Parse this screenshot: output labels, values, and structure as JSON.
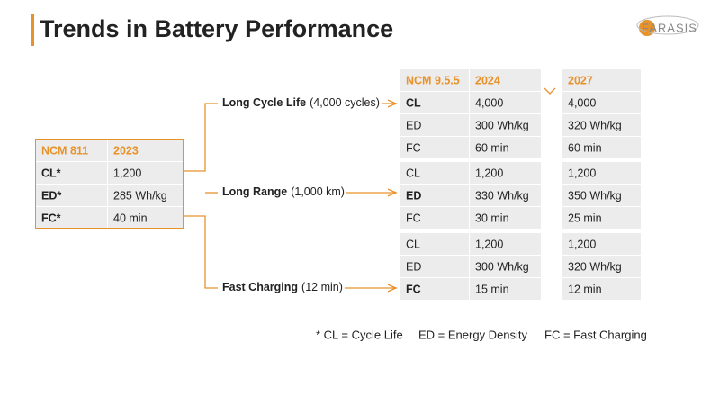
{
  "header": {
    "title": "Trends in Battery Performance",
    "logo": "FARASIS"
  },
  "base_table": {
    "columns": [
      "NCM 811",
      "2023"
    ],
    "rows": [
      [
        "CL*",
        "1,200"
      ],
      [
        "ED*",
        "285 Wh/kg"
      ],
      [
        "FC*",
        "40 min"
      ]
    ]
  },
  "branches": [
    {
      "label": "Long Cycle Life",
      "detail": "(4,000 cycles)"
    },
    {
      "label": "Long Range",
      "detail": "(1,000 km)"
    },
    {
      "label": "Fast Charging",
      "detail": "(12 min)"
    }
  ],
  "target_table": {
    "columns": [
      "NCM 9.5.5",
      "2024",
      "2027"
    ],
    "groups": [
      {
        "bold_row": 0,
        "rows": [
          [
            "CL",
            "4,000",
            "4,000"
          ],
          [
            "ED",
            "300 Wh/kg",
            "320 Wh/kg"
          ],
          [
            "FC",
            "60 min",
            "60 min"
          ]
        ]
      },
      {
        "bold_row": 1,
        "rows": [
          [
            "CL",
            "1,200",
            "1,200"
          ],
          [
            "ED",
            "330 Wh/kg",
            "350 Wh/kg"
          ],
          [
            "FC",
            "30 min",
            "25 min"
          ]
        ]
      },
      {
        "bold_row": 2,
        "rows": [
          [
            "CL",
            "1,200",
            "1,200"
          ],
          [
            "ED",
            "300 Wh/kg",
            "320 Wh/kg"
          ],
          [
            "FC",
            "15 min",
            "12 min"
          ]
        ]
      }
    ]
  },
  "footnote": [
    "* CL = Cycle Life",
    "ED = Energy Density",
    "FC = Fast Charging"
  ]
}
